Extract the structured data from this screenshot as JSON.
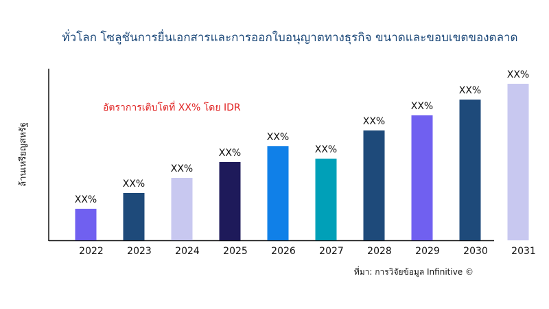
{
  "chart_data": {
    "type": "bar",
    "title": "ทั่วโลก โซลูชันการยื่นเอกสารและการออกใบอนุญาตทางธุรกิจ ขนาดและขอบเขตของตลาด",
    "xlabel": "",
    "ylabel": "ล้านเหรียญสหรัฐ",
    "categories": [
      "2022",
      "2023",
      "2024",
      "2025",
      "2026",
      "2027",
      "2028",
      "2029",
      "2030",
      "2031"
    ],
    "values": [
      46,
      69,
      91,
      114,
      137,
      119,
      160,
      182,
      205,
      228
    ],
    "data_labels": [
      "XX%",
      "XX%",
      "XX%",
      "XX%",
      "XX%",
      "XX%",
      "XX%",
      "XX%",
      "XX%",
      "XX%"
    ],
    "colors": [
      "#7060f0",
      "#1e4a7a",
      "#c8c8f0",
      "#1e1a5a",
      "#1080e8",
      "#00a0b8",
      "#1e4a7a",
      "#7060f0",
      "#1e4a7a",
      "#c8c8f0"
    ],
    "ylim": [
      0,
      250
    ],
    "grid": false,
    "annotation": "อัตราการเติบโตที่ XX% โดย IDR",
    "source": "ที่มา: การวิจัยข้อมูล Infinitive ©"
  }
}
